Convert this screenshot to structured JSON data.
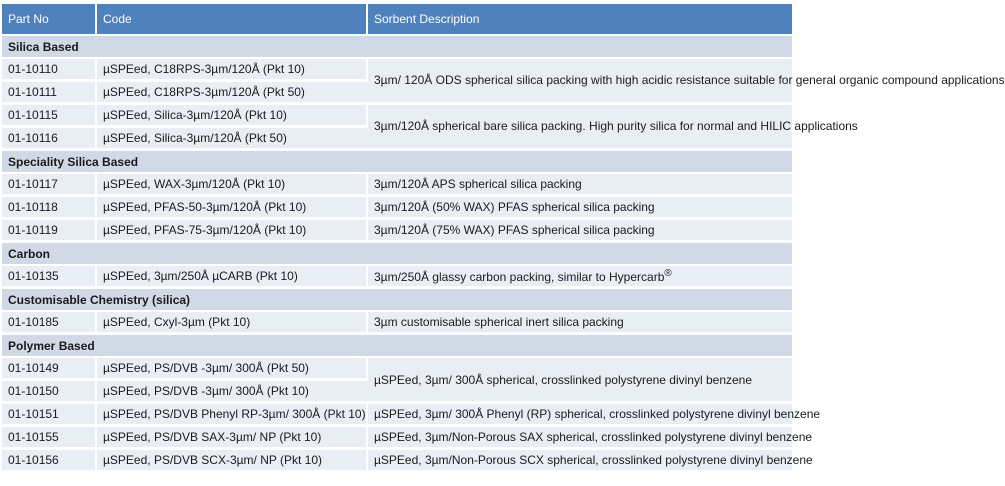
{
  "headers": {
    "part_no": "Part No",
    "code": "Code",
    "description": "Sorbent Description"
  },
  "sections": [
    {
      "title": "Silica Based",
      "rows": [
        {
          "part": "01-10110",
          "code": "µSPEed, C18RPS-3µm/120Å (Pkt 10)"
        },
        {
          "part": "01-10111",
          "code": "µSPEed, C18RPS-3µm/120Å (Pkt 50)"
        },
        {
          "part": "01-10115",
          "code": "µSPEed, Silica-3µm/120Å (Pkt 10)"
        },
        {
          "part": "01-10116",
          "code": "µSPEed, Silica-3µm/120Å (Pkt 50)"
        }
      ],
      "descriptions": [
        "3µm/ 120Å ODS spherical silica packing with high acidic resistance suitable for general organic compound applications",
        "3µm/120Å spherical bare silica packing. High purity silica for normal and HILIC applications"
      ]
    },
    {
      "title": "Speciality Silica Based",
      "rows": [
        {
          "part": "01-10117",
          "code": "µSPEed, WAX-3µm/120Å (Pkt 10)",
          "desc": "3µm/120Å APS spherical silica packing"
        },
        {
          "part": "01-10118",
          "code": "µSPEed, PFAS-50-3µm/120Å (Pkt 10)",
          "desc": "3µm/120Å (50% WAX) PFAS spherical silica packing"
        },
        {
          "part": "01-10119",
          "code": "µSPEed, PFAS-75-3µm/120Å (Pkt 10)",
          "desc": "3µm/120Å (75% WAX) PFAS spherical silica packing"
        }
      ]
    },
    {
      "title": "Carbon",
      "rows": [
        {
          "part": "01-10135",
          "code": "µSPEed, 3µm/250Å µCARB (Pkt 10)",
          "desc": "3µm/250Å glassy carbon packing, similar to Hypercarb",
          "desc_sup": "®"
        }
      ]
    },
    {
      "title": "Customisable Chemistry (silica)",
      "rows": [
        {
          "part": "01-10185",
          "code": "µSPEed, Cxyl-3µm (Pkt 10)",
          "desc": "3µm customisable spherical inert silica packing"
        }
      ]
    },
    {
      "title": "Polymer Based",
      "rows": [
        {
          "part": "01-10149",
          "code": "µSPEed, PS/DVB -3µm/ 300Å (Pkt 50)"
        },
        {
          "part": "01-10150",
          "code": "µSPEed, PS/DVB -3µm/ 300Å (Pkt 10)"
        },
        {
          "part": "01-10151",
          "code": "µSPEed, PS/DVB Phenyl RP-3µm/ 300Å (Pkt 10)",
          "desc": "µSPEed, 3µm/ 300Å Phenyl (RP) spherical, crosslinked polystyrene divinyl benzene"
        },
        {
          "part": "01-10155",
          "code": "µSPEed, PS/DVB SAX-3µm/ NP (Pkt 10)",
          "desc": "µSPEed, 3µm/Non-Porous SAX spherical, crosslinked polystyrene divinyl benzene"
        },
        {
          "part": "01-10156",
          "code": "µSPEed, PS/DVB SCX-3µm/ NP (Pkt 10)",
          "desc": "µSPEed, 3µm/Non-Porous SCX spherical, crosslinked polystyrene divinyl benzene"
        }
      ],
      "merged_description": "µSPEed, 3µm/ 300Å spherical, crosslinked polystyrene divinyl benzene"
    }
  ]
}
